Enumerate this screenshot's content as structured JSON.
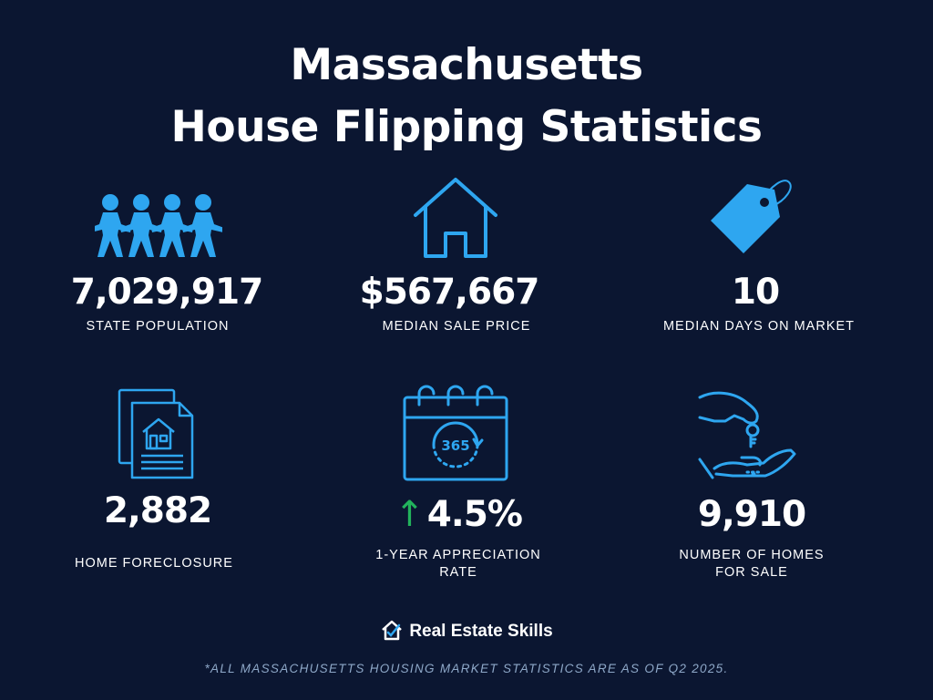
{
  "header": {
    "title_line1": "Massachusetts",
    "title_line2": "House Flipping Statistics"
  },
  "stats": [
    {
      "value": "7,029,917",
      "label": "STATE POPULATION",
      "icon": "people-chain-icon"
    },
    {
      "value": "$567,667",
      "label": "MEDIAN SALE PRICE",
      "icon": "house-outline-icon"
    },
    {
      "value": "10",
      "label": "MEDIAN DAYS ON MARKET",
      "icon": "price-tag-icon"
    },
    {
      "value": "2,882",
      "label": "HOME FORECLOSURE",
      "icon": "foreclosure-documents-icon"
    },
    {
      "value": "4.5%",
      "label_line1": "1-YEAR APPRECIATION",
      "label_line2": "RATE",
      "icon": "calendar-365-icon",
      "trend": "up"
    },
    {
      "value": "9,910",
      "label_line1": "NUMBER OF HOMES",
      "label_line2": "FOR SALE",
      "icon": "key-handover-icon"
    }
  ],
  "calendar_text": "365",
  "footer": {
    "brand": "Real Estate Skills",
    "note": "*ALL MASSACHUSETTS HOUSING MARKET STATISTICS ARE AS OF Q2 2025."
  },
  "colors": {
    "background": "#0b1631",
    "accent": "#2ea6f0",
    "up_arrow": "#22b35c",
    "footnote": "#8ea8c8"
  }
}
